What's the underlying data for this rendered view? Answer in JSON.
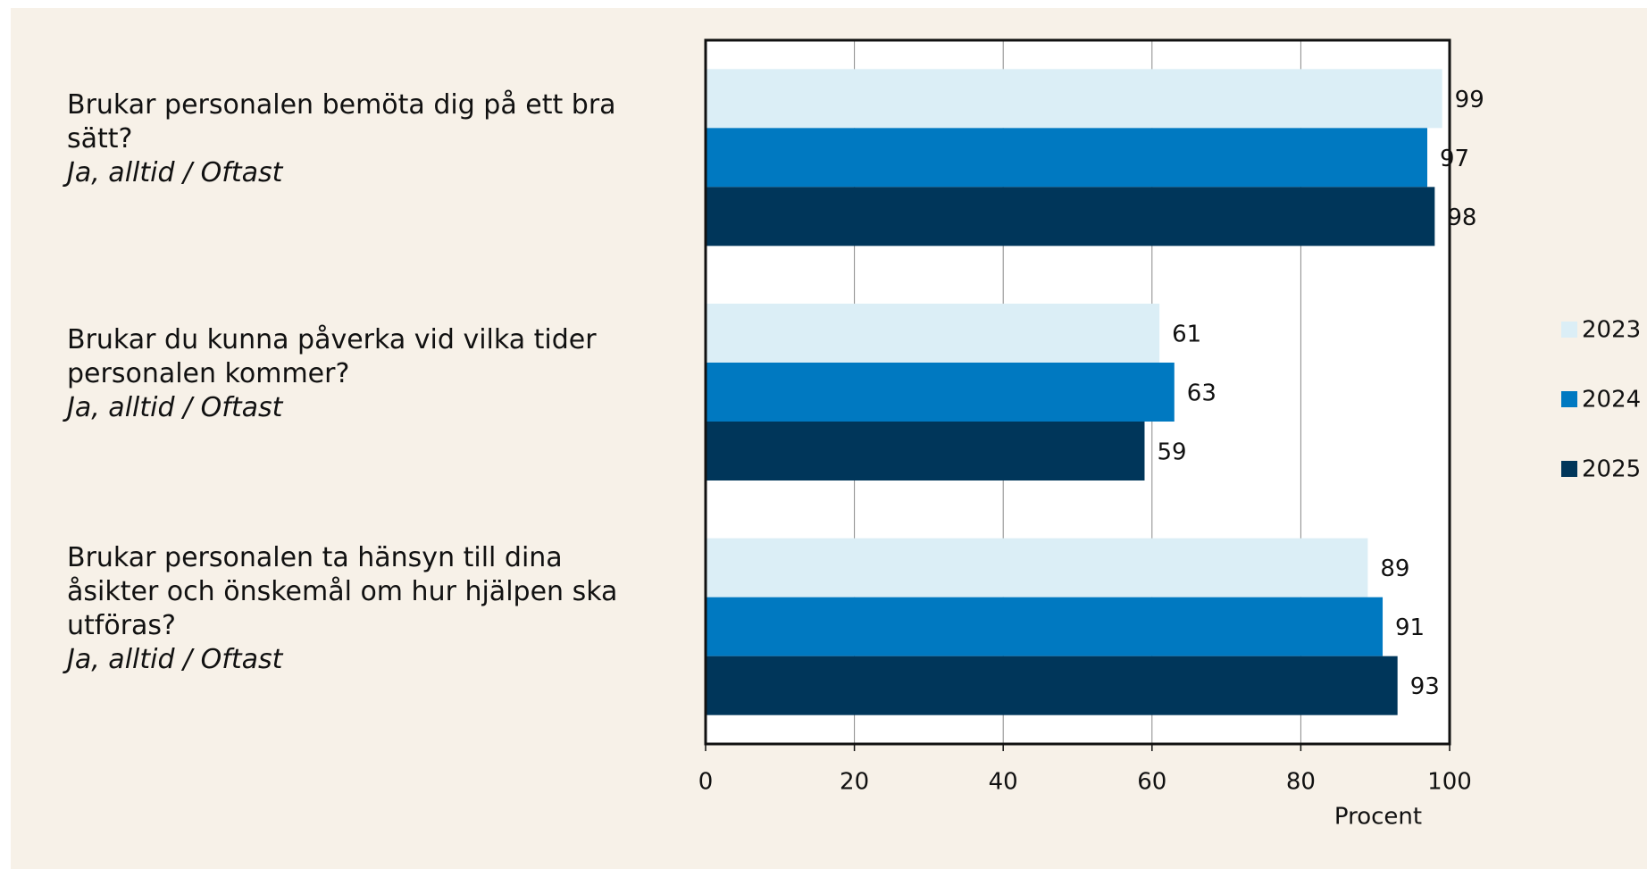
{
  "chart_data": {
    "type": "hbar",
    "categories": [
      "Brukar personalen bemöta dig på ett bra sätt?",
      "Brukar du kunna påverka vid vilka tider personalen kommer?",
      "Brukar personalen ta hänsyn till dina åsikter och önskemål om hur hjälpen ska utföras?"
    ],
    "category_notes": [
      "Ja, alltid / Oftast",
      "Ja, alltid / Oftast",
      "Ja, alltid / Oftast"
    ],
    "series": [
      {
        "name": "2023",
        "color": "#dbeef6",
        "values": [
          99,
          61,
          89
        ]
      },
      {
        "name": "2024",
        "color": "#0079c1",
        "values": [
          97,
          63,
          91
        ]
      },
      {
        "name": "2025",
        "color": "#00365a",
        "values": [
          98,
          59,
          93
        ]
      }
    ],
    "xlim": [
      0,
      100
    ],
    "xticks": [
      0,
      20,
      40,
      60,
      80,
      100
    ],
    "xlabel": "Procent",
    "grid": true,
    "legend": "right"
  }
}
